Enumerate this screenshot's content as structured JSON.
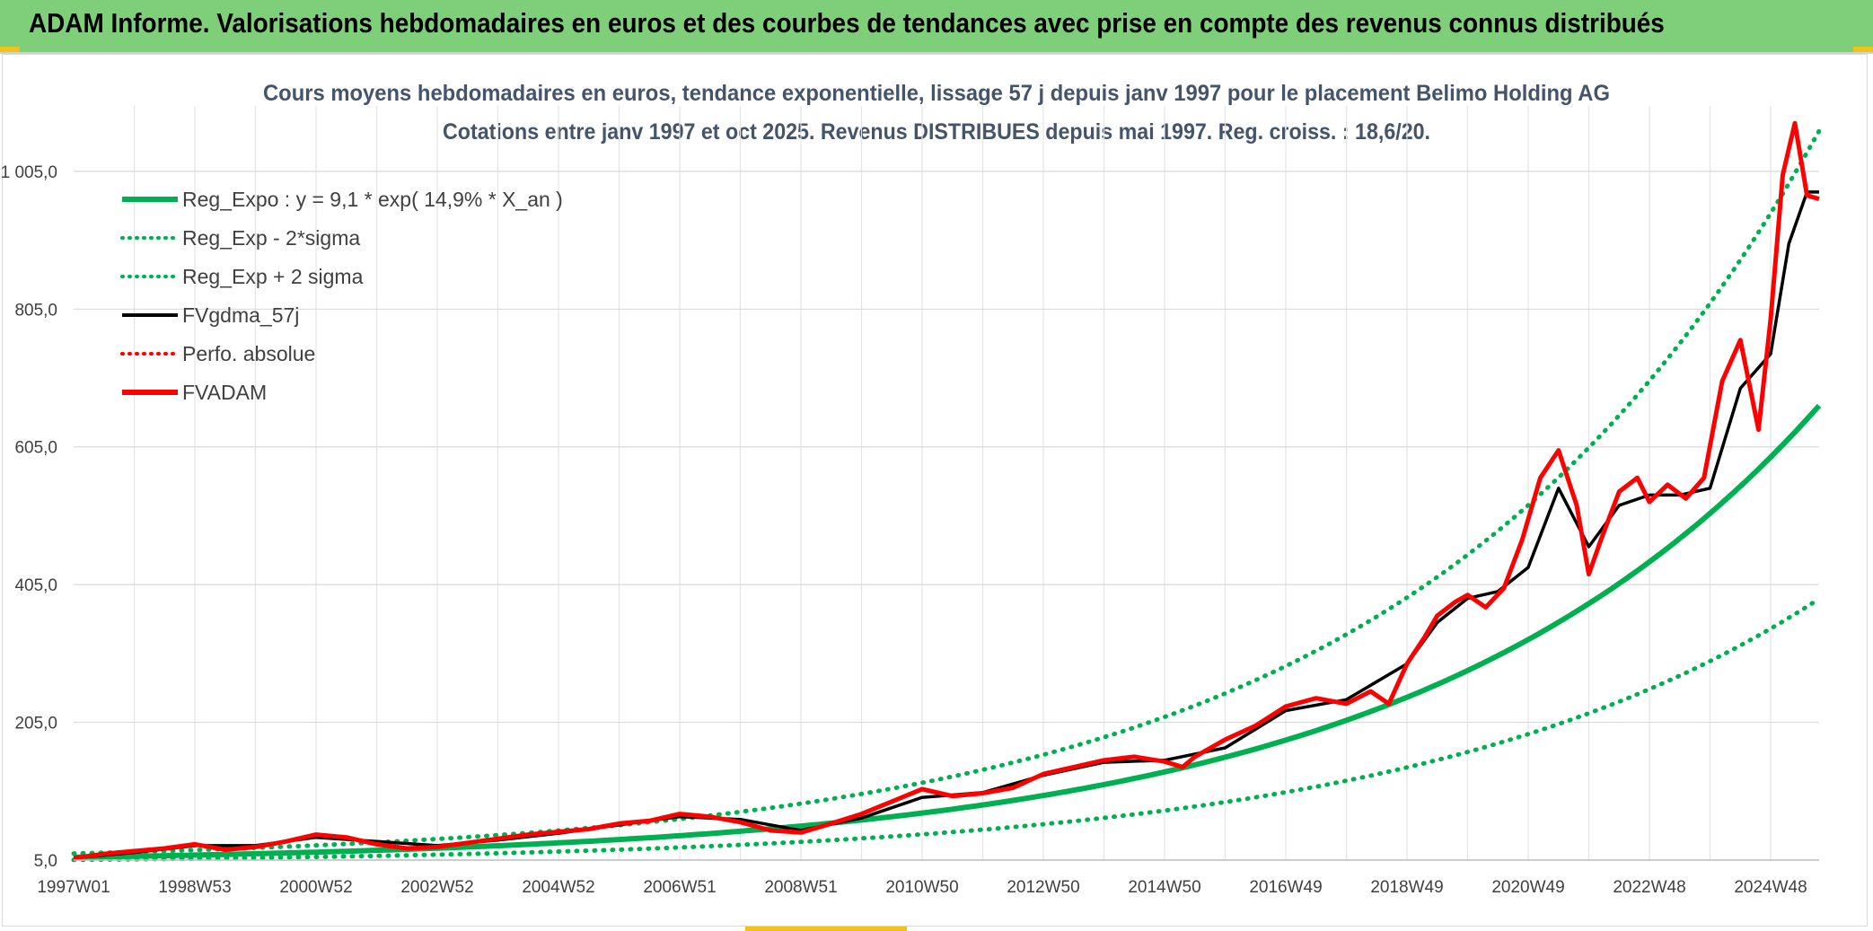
{
  "banner": {
    "title": "ADAM Informe. Valorisations hebdomadaires en euros et des courbes de tendances avec prise en compte des revenus connus distribués"
  },
  "colors": {
    "banner_bg": "#7fcf7a",
    "reg_expo": "#00b050",
    "fvgdma": "#000000",
    "fvadam": "#ff0000",
    "corner": "#f2c21b"
  },
  "chart_data": {
    "type": "line",
    "title": "Cours moyens hebdomadaires en euros, tendance exponentielle, lissage 57 j depuis janv 1997 pour le placement Belimo Holding AG",
    "subtitle": "Cotations entre janv 1997 et oct 2025. Revenus DISTRIBUES depuis mai 1997. Reg. croiss. : 18,6/20.",
    "xlabel": "",
    "ylabel": "",
    "x_tick_labels": [
      "1997W01",
      "1998W53",
      "2000W52",
      "2002W52",
      "2004W52",
      "2006W51",
      "2008W51",
      "2010W50",
      "2012W50",
      "2014W50",
      "2016W49",
      "2018W49",
      "2020W49",
      "2022W48",
      "2024W48"
    ],
    "x_tick_years": [
      1997.0,
      1999.0,
      2001.0,
      2003.0,
      2005.0,
      2007.0,
      2009.0,
      2011.0,
      2013.0,
      2015.0,
      2017.0,
      2019.0,
      2021.0,
      2023.0,
      2025.0
    ],
    "y_tick_labels": [
      "5,0",
      "205,0",
      "405,0",
      "605,0",
      "805,0",
      "1 005,0"
    ],
    "y_ticks": [
      5,
      205,
      405,
      605,
      805,
      1005
    ],
    "xlim": [
      1997.0,
      2025.8
    ],
    "ylim": [
      5,
      1100
    ],
    "grid": true,
    "legend_position": "top-left",
    "legend": [
      {
        "label": "Reg_Expo : y = 9,1 * exp( 14,9% *  X_an )",
        "color": "#00b050",
        "style": "solid-thick"
      },
      {
        "label": "Reg_Exp - 2*sigma",
        "color": "#00b050",
        "style": "dotted"
      },
      {
        "label": "Reg_Exp + 2 sigma",
        "color": "#00b050",
        "style": "dotted"
      },
      {
        "label": "FVgdma_57j",
        "color": "#000000",
        "style": "solid"
      },
      {
        "label": "Perfo. absolue",
        "color": "#ff0000",
        "style": "dotted"
      },
      {
        "label": "FVADAM",
        "color": "#ff0000",
        "style": "solid-thick"
      }
    ],
    "regression": {
      "a": 9.1,
      "rate": 0.149,
      "minus_2sigma_factor": 0.578,
      "plus_2sigma_factor": 1.6
    },
    "series": [
      {
        "name": "FVADAM",
        "x": [
          1997.0,
          1997.5,
          1998.0,
          1998.5,
          1999.0,
          1999.5,
          2000.0,
          2000.5,
          2001.0,
          2001.5,
          2002.0,
          2002.5,
          2003.0,
          2003.5,
          2004.0,
          2004.5,
          2005.0,
          2005.5,
          2006.0,
          2006.5,
          2007.0,
          2007.5,
          2008.0,
          2008.5,
          2009.0,
          2009.5,
          2010.0,
          2010.5,
          2011.0,
          2011.5,
          2012.0,
          2012.5,
          2013.0,
          2013.5,
          2014.0,
          2014.5,
          2015.0,
          2015.3,
          2015.5,
          2016.0,
          2016.5,
          2017.0,
          2017.5,
          2018.0,
          2018.4,
          2018.7,
          2019.0,
          2019.3,
          2019.5,
          2019.8,
          2020.0,
          2020.3,
          2020.6,
          2020.9,
          2021.2,
          2021.5,
          2021.8,
          2022.0,
          2022.2,
          2022.5,
          2022.8,
          2023.0,
          2023.3,
          2023.6,
          2023.9,
          2024.2,
          2024.5,
          2024.8,
          2025.0,
          2025.2,
          2025.4,
          2025.6,
          2025.8
        ],
        "y": [
          8,
          14,
          18,
          22,
          28,
          20,
          24,
          32,
          42,
          38,
          28,
          22,
          24,
          30,
          36,
          42,
          46,
          50,
          58,
          62,
          72,
          68,
          60,
          48,
          45,
          58,
          72,
          90,
          108,
          98,
          102,
          110,
          130,
          140,
          150,
          155,
          148,
          140,
          155,
          180,
          200,
          228,
          240,
          232,
          250,
          232,
          290,
          330,
          360,
          380,
          390,
          372,
          400,
          470,
          560,
          600,
          520,
          420,
          470,
          540,
          560,
          525,
          550,
          530,
          560,
          700,
          760,
          630,
          790,
          1000,
          1075,
          970,
          965
        ]
      },
      {
        "name": "FVgdma_57j",
        "x": [
          1997.0,
          1998.0,
          1999.0,
          2000.0,
          2001.0,
          2002.0,
          2003.0,
          2004.0,
          2005.0,
          2006.0,
          2007.0,
          2008.0,
          2009.0,
          2010.0,
          2011.0,
          2012.0,
          2013.0,
          2014.0,
          2015.0,
          2016.0,
          2017.0,
          2018.0,
          2019.0,
          2019.5,
          2020.0,
          2020.5,
          2021.0,
          2021.5,
          2022.0,
          2022.5,
          2023.0,
          2023.5,
          2024.0,
          2024.5,
          2025.0,
          2025.3,
          2025.6,
          2025.8
        ],
        "y": [
          8,
          16,
          26,
          26,
          38,
          32,
          26,
          34,
          44,
          56,
          68,
          64,
          48,
          66,
          96,
          103,
          128,
          147,
          150,
          168,
          222,
          238,
          290,
          350,
          385,
          395,
          430,
          545,
          460,
          520,
          535,
          535,
          545,
          690,
          740,
          900,
          975,
          975
        ]
      }
    ]
  }
}
